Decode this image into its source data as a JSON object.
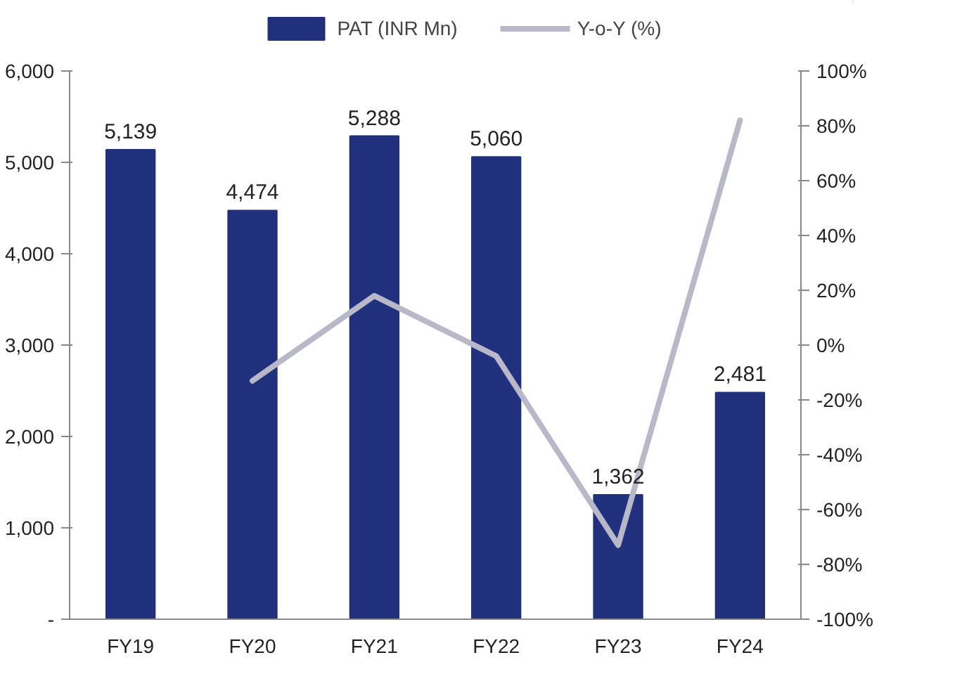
{
  "chart_data": {
    "type": "bar",
    "categories": [
      "FY19",
      "FY20",
      "FY21",
      "FY22",
      "FY23",
      "FY24"
    ],
    "series": [
      {
        "name": "PAT (INR Mn)",
        "color": "#22317e",
        "values": [
          5139,
          4474,
          5288,
          5060,
          1362,
          2481
        ],
        "value_labels": [
          "5,139",
          "4,474",
          "5,288",
          "5,060",
          "1,362",
          "2,481"
        ]
      },
      {
        "name": "Y-o-Y (%)",
        "type": "line",
        "axis": "y2",
        "color": "#b9b8c9",
        "values": [
          null,
          -13,
          18,
          -4,
          -73,
          82
        ]
      }
    ],
    "ylim": [
      0,
      6000
    ],
    "yticks": [
      {
        "value": 0,
        "label": "-"
      },
      {
        "value": 1000,
        "label": "1,000"
      },
      {
        "value": 2000,
        "label": "2,000"
      },
      {
        "value": 3000,
        "label": "3,000"
      },
      {
        "value": 4000,
        "label": "4,000"
      },
      {
        "value": 5000,
        "label": "5,000"
      },
      {
        "value": 6000,
        "label": "6,000"
      }
    ],
    "y2lim": [
      -100,
      100
    ],
    "y2ticks": [
      {
        "value": -100,
        "label": "-100%"
      },
      {
        "value": -80,
        "label": "-80%"
      },
      {
        "value": -60,
        "label": "-60%"
      },
      {
        "value": -40,
        "label": "-40%"
      },
      {
        "value": -20,
        "label": "-20%"
      },
      {
        "value": 0,
        "label": "0%"
      },
      {
        "value": 20,
        "label": "20%"
      },
      {
        "value": 40,
        "label": "40%"
      },
      {
        "value": 60,
        "label": "60%"
      },
      {
        "value": 80,
        "label": "80%"
      },
      {
        "value": 100,
        "label": "100%"
      }
    ],
    "legend": "top",
    "grid": false
  }
}
